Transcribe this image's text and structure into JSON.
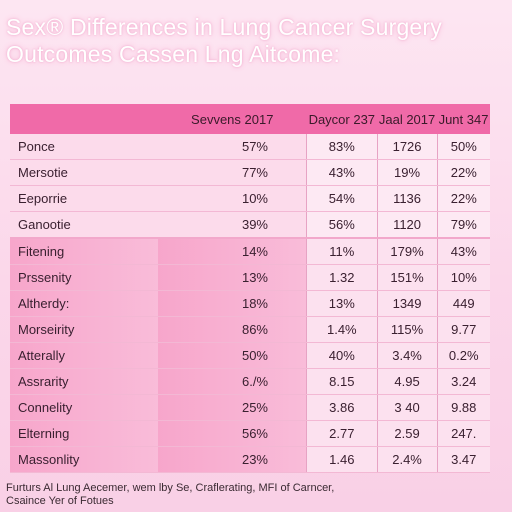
{
  "title_line1": "Sex® Differences in Lung Cancer Surgery",
  "title_line2": "Outcomes Cassen Lng Aitcome:",
  "chart_data": {
    "type": "table",
    "columns": [
      "Sevvens 2017",
      "Daycor 237",
      "Jaal 2017",
      "Junt 347"
    ],
    "rows": [
      {
        "label": "Ponce",
        "values": [
          "57%",
          "83%",
          "1726",
          "50%"
        ],
        "group": "top"
      },
      {
        "label": "Mersotie",
        "values": [
          "77%",
          "43%",
          "19%",
          "22%"
        ],
        "group": "top"
      },
      {
        "label": "Eeporrie",
        "values": [
          "10%",
          "54%",
          "1136",
          "22%"
        ],
        "group": "top"
      },
      {
        "label": "Ganootie",
        "values": [
          "39%",
          "56%",
          "1120",
          "79%"
        ],
        "group": "top"
      },
      {
        "label": "Fitening",
        "values": [
          "14%",
          "11%",
          "179%",
          "43%"
        ],
        "group": "bottom"
      },
      {
        "label": "Prssenity",
        "values": [
          "13%",
          "1.32",
          "151%",
          "10%"
        ],
        "group": "bottom"
      },
      {
        "label": "Altherdy:",
        "values": [
          "18%",
          "13%",
          "1349",
          "449"
        ],
        "group": "bottom"
      },
      {
        "label": "Morseirity",
        "values": [
          "86%",
          "1.4%",
          "115%",
          "9.77"
        ],
        "group": "bottom"
      },
      {
        "label": "Atterally",
        "values": [
          "50%",
          "40%",
          "3.4%",
          "0.2%"
        ],
        "group": "bottom"
      },
      {
        "label": "Assrarity",
        "values": [
          "6./%",
          "8.15",
          "4.95",
          "3.24"
        ],
        "group": "bottom"
      },
      {
        "label": "Connelity",
        "values": [
          "25%",
          "3.86",
          "3 40",
          "9.88"
        ],
        "group": "bottom"
      },
      {
        "label": "Elterning",
        "values": [
          "56%",
          "2.77",
          "2.59",
          "247."
        ],
        "group": "bottom"
      },
      {
        "label": "Massonlity",
        "values": [
          "23%",
          "1.46",
          "2.4%",
          "3.47"
        ],
        "group": "bottom"
      }
    ]
  },
  "footer_line1": "Furturs Al Lung Aecemer, wem lby Se, Craflerating, MFI of Carncer,",
  "footer_line2": "Csaince Yer of Fotues",
  "colors": {
    "header": "#f06aa8",
    "background": "#fbd7ea",
    "accent_band": "#f7a6cb"
  }
}
